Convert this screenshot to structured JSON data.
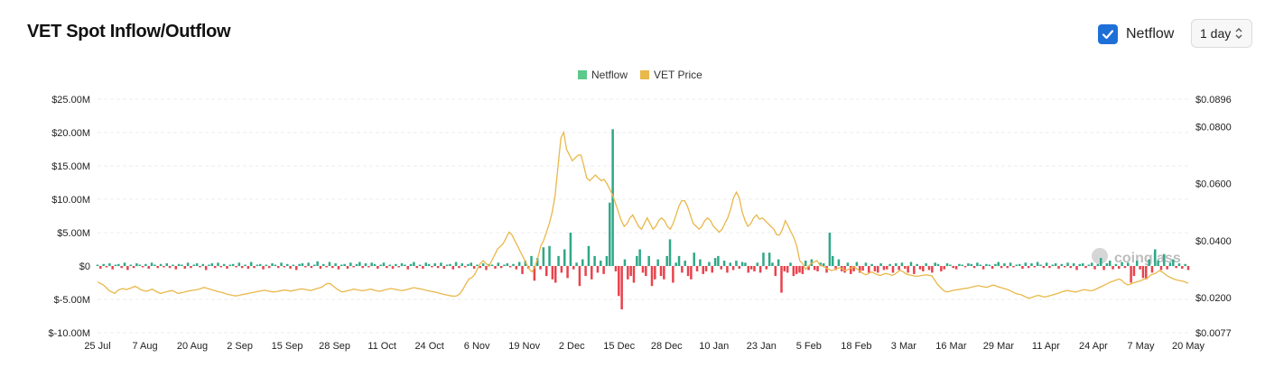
{
  "header": {
    "title": "VET Spot Inflow/Outflow",
    "netflow_toggle_label": "Netflow",
    "netflow_checked": true,
    "interval_value": "1 day"
  },
  "legend": [
    {
      "label": "Netflow",
      "color": "#5cc98a"
    },
    {
      "label": "VET Price",
      "color": "#e8b84a"
    }
  ],
  "watermark": "coinglass",
  "colors": {
    "inflow": "#2fa888",
    "outflow": "#e8434d",
    "price": "#e8b84a",
    "grid": "#ececec"
  },
  "chart_data": {
    "type": "bar+line",
    "x_labels": [
      "25 Jul",
      "7 Aug",
      "20 Aug",
      "2 Sep",
      "15 Sep",
      "28 Sep",
      "11 Oct",
      "24 Oct",
      "6 Nov",
      "19 Nov",
      "2 Dec",
      "15 Dec",
      "28 Dec",
      "10 Jan",
      "23 Jan",
      "5 Feb",
      "18 Feb",
      "3 Mar",
      "16 Mar",
      "29 Mar",
      "11 Apr",
      "24 Apr",
      "7 May",
      "20 May"
    ],
    "y_left": {
      "ticks": [
        "$25.00M",
        "$20.00M",
        "$15.00M",
        "$10.00M",
        "$5.00M",
        "$0",
        "$-5.00M",
        "$-10.00M"
      ],
      "range": [
        -10,
        25
      ],
      "unit": "M USD"
    },
    "y_right": {
      "ticks": [
        "$0.0896",
        "$0.0800",
        "$0.0600",
        "$0.0400",
        "$0.0200",
        "$0.0077"
      ],
      "range": [
        0.0077,
        0.0896
      ]
    },
    "series": [
      {
        "name": "Netflow",
        "axis": "left",
        "values": [
          0.2,
          -0.4,
          0.3,
          -0.2,
          0.4,
          -0.5,
          0.2,
          0.3,
          -0.3,
          0.5,
          -0.6,
          0.2,
          -0.3,
          0.4,
          0.2,
          -0.2,
          0.3,
          -0.4,
          0.5,
          0.2,
          -0.3,
          0.3,
          -0.2,
          0.4,
          -0.3,
          0.2,
          -0.5,
          0.3,
          0.2,
          -0.4,
          0.5,
          -0.3,
          0.2,
          0.4,
          -0.2,
          0.3,
          -0.6,
          0.2,
          0.4,
          -0.3,
          0.5,
          -0.2,
          0.3,
          -0.4,
          0.2,
          0.3,
          -0.2,
          0.5,
          -0.3,
          0.2,
          -0.4,
          0.6,
          -0.3,
          0.2,
          0.3,
          -0.5,
          0.2,
          -0.3,
          0.4,
          0.2,
          -0.3,
          0.5,
          -0.2,
          0.3,
          -0.4,
          0.2,
          -0.6,
          0.3,
          0.4,
          -0.2,
          0.5,
          -0.3,
          0.2,
          0.7,
          -0.4,
          0.3,
          -0.2,
          0.6,
          -0.3,
          0.4,
          -0.5,
          0.2,
          0.3,
          -0.4,
          0.5,
          -0.2,
          0.3,
          0.6,
          -0.3,
          0.4,
          -0.2,
          0.5,
          0.3,
          -0.4,
          0.2,
          0.5,
          -0.3,
          0.2,
          -0.4,
          0.3,
          -0.2,
          0.4,
          0.2,
          -0.5,
          0.3,
          0.6,
          -0.3,
          0.2,
          -0.4,
          0.5,
          0.3,
          -0.2,
          0.4,
          -0.3,
          0.5,
          -0.4,
          0.2,
          0.3,
          -0.5,
          0.6,
          -0.3,
          0.4,
          -0.2,
          0.3,
          0.5,
          -0.4,
          0.2,
          -0.3,
          0.4,
          -0.6,
          0.3,
          0.2,
          -0.4,
          0.5,
          -0.3,
          0.2,
          0.4,
          -0.2,
          0.3,
          -0.5,
          0.6,
          -1.2,
          0.8,
          -0.4,
          1.5,
          -2.2,
          1.2,
          -0.5,
          2.8,
          -1.5,
          3.0,
          -2.0,
          -2.5,
          1.5,
          -1.0,
          2.5,
          -1.8,
          5.0,
          -0.5,
          0.5,
          -3.0,
          1.0,
          -1.5,
          3.0,
          -2.0,
          1.5,
          -1.0,
          0.8,
          -1.2,
          1.5,
          9.5,
          20.5,
          -0.8,
          -4.5,
          -6.5,
          1.0,
          -2.0,
          -1.5,
          -2.5,
          1.5,
          2.5,
          -1.0,
          -1.5,
          1.5,
          -3.0,
          -2.0,
          1.0,
          -1.5,
          -2.0,
          1.5,
          4.0,
          -2.5,
          0.5,
          1.5,
          -1.0,
          0.8,
          -1.5,
          -2.0,
          2.0,
          -0.8,
          1.0,
          -1.2,
          -0.8,
          0.6,
          -1.0,
          1.2,
          1.5,
          -0.5,
          0.8,
          -1.0,
          0.5,
          -0.6,
          0.8,
          -0.4,
          0.6,
          0.5,
          -1.0,
          -0.5,
          -0.8,
          0.5,
          -1.0,
          2.0,
          -0.5,
          2.0,
          0.5,
          -1.5,
          1.0,
          -4.0,
          -0.8,
          -1.0,
          0.5,
          -1.5,
          -1.2,
          -1.0,
          -1.2,
          0.8,
          -0.6,
          1.0,
          -0.6,
          -0.8,
          0.5,
          0.4,
          -1.0,
          5.0,
          1.5,
          -0.6,
          1.0,
          -0.8,
          -1.0,
          0.5,
          -1.2,
          -0.8,
          0.6,
          -1.0,
          -0.7,
          0.5,
          -1.0,
          0.3,
          -0.8,
          -1.0,
          0.4,
          -0.6,
          -0.5,
          0.3,
          -1.0,
          0.4,
          -0.6,
          0.5,
          -0.4,
          -1.0,
          0.6,
          -1.2,
          0.3,
          -0.5,
          -0.8,
          0.4,
          -0.6,
          -1.0,
          0.5,
          0.3,
          -0.8,
          -0.5,
          0.4,
          0.2,
          -0.3,
          -0.5,
          0.3,
          0.2,
          -0.2,
          0.4,
          0.3,
          -0.3,
          0.5,
          0.2,
          -0.5,
          0.3,
          0.2,
          -0.4,
          0.3,
          0.6,
          -0.3,
          0.4,
          -0.3,
          0.5,
          -0.2,
          0.2,
          0.3,
          -0.4,
          0.5,
          -0.3,
          0.4,
          -0.2,
          0.6,
          0.2,
          -0.3,
          0.5,
          -0.3,
          0.2,
          0.4,
          -0.4,
          0.3,
          -0.2,
          0.5,
          -0.3,
          0.4,
          -0.6,
          0.3,
          0.4,
          -0.3,
          0.2,
          0.5,
          -0.5,
          0.3,
          1.2,
          -0.6,
          0.4,
          0.8,
          -0.5,
          0.3,
          -0.4,
          0.6,
          -0.3,
          0.5,
          -2.5,
          -1.5,
          0.8,
          -0.5,
          -1.8,
          -2.0,
          1.0,
          -1.0,
          2.5,
          0.8,
          -0.6,
          1.8,
          -0.5,
          0.5,
          1.0,
          -0.3,
          0.4,
          -0.4,
          0.3,
          -0.6
        ]
      },
      {
        "name": "VET Price",
        "axis": "right",
        "values": [
          0.0255,
          0.025,
          0.0245,
          0.0235,
          0.0225,
          0.022,
          0.0215,
          0.0225,
          0.023,
          0.0232,
          0.0228,
          0.0232,
          0.0235,
          0.024,
          0.0235,
          0.0228,
          0.0225,
          0.0222,
          0.0226,
          0.023,
          0.0224,
          0.0219,
          0.0215,
          0.0218,
          0.0221,
          0.0223,
          0.0225,
          0.022,
          0.0215,
          0.0217,
          0.0219,
          0.0222,
          0.0224,
          0.0226,
          0.0227,
          0.0229,
          0.0232,
          0.0236,
          0.0233,
          0.023,
          0.0227,
          0.0224,
          0.0221,
          0.0219,
          0.0216,
          0.0212,
          0.021,
          0.0208,
          0.0206,
          0.0208,
          0.021,
          0.0212,
          0.0214,
          0.0216,
          0.0218,
          0.022,
          0.0222,
          0.0224,
          0.0226,
          0.0224,
          0.0222,
          0.022,
          0.0221,
          0.0223,
          0.0225,
          0.0227,
          0.0225,
          0.0223,
          0.0225,
          0.0227,
          0.0229,
          0.0231,
          0.0229,
          0.0227,
          0.0225,
          0.0228,
          0.0231,
          0.0234,
          0.0237,
          0.0245,
          0.025,
          0.0248,
          0.024,
          0.0232,
          0.0225,
          0.022,
          0.0222,
          0.0225,
          0.0227,
          0.023,
          0.0228,
          0.0226,
          0.0224,
          0.0226,
          0.0228,
          0.023,
          0.0227,
          0.0224,
          0.0222,
          0.0225,
          0.0228,
          0.023,
          0.0232,
          0.023,
          0.0228,
          0.0226,
          0.0225,
          0.0227,
          0.023,
          0.0233,
          0.0235,
          0.0233,
          0.0231,
          0.0229,
          0.0226,
          0.0224,
          0.0222,
          0.022,
          0.0218,
          0.0215,
          0.0212,
          0.021,
          0.0208,
          0.0206,
          0.0205,
          0.0207,
          0.0215,
          0.023,
          0.0248,
          0.0265,
          0.027,
          0.028,
          0.03,
          0.032,
          0.033,
          0.032,
          0.031,
          0.033,
          0.035,
          0.037,
          0.038,
          0.039,
          0.041,
          0.043,
          0.042,
          0.04,
          0.038,
          0.036,
          0.034,
          0.032,
          0.03,
          0.029,
          0.031,
          0.034,
          0.038,
          0.04,
          0.043,
          0.046,
          0.05,
          0.056,
          0.066,
          0.076,
          0.078,
          0.072,
          0.07,
          0.068,
          0.069,
          0.07,
          0.07,
          0.066,
          0.062,
          0.061,
          0.062,
          0.063,
          0.062,
          0.061,
          0.0615,
          0.06,
          0.058,
          0.056,
          0.053,
          0.05,
          0.047,
          0.045,
          0.046,
          0.048,
          0.049,
          0.047,
          0.045,
          0.044,
          0.046,
          0.048,
          0.046,
          0.044,
          0.045,
          0.047,
          0.048,
          0.047,
          0.045,
          0.044,
          0.046,
          0.049,
          0.052,
          0.054,
          0.054,
          0.052,
          0.049,
          0.046,
          0.045,
          0.044,
          0.045,
          0.047,
          0.048,
          0.047,
          0.045,
          0.044,
          0.043,
          0.044,
          0.046,
          0.048,
          0.051,
          0.055,
          0.057,
          0.055,
          0.05,
          0.047,
          0.045,
          0.046,
          0.048,
          0.049,
          0.0475,
          0.048,
          0.047,
          0.046,
          0.045,
          0.044,
          0.042,
          0.042,
          0.044,
          0.047,
          0.045,
          0.043,
          0.041,
          0.038,
          0.033,
          0.032,
          0.03,
          0.031,
          0.032,
          0.0325,
          0.033,
          0.0315,
          0.031,
          0.0305,
          0.03,
          0.0295,
          0.0298,
          0.0302,
          0.0305,
          0.03,
          0.0295,
          0.03,
          0.0305,
          0.0308,
          0.03,
          0.0292,
          0.0285,
          0.028,
          0.0285,
          0.029,
          0.0285,
          0.028,
          0.0278,
          0.0282,
          0.0285,
          0.0282,
          0.0278,
          0.0282,
          0.029,
          0.0296,
          0.029,
          0.0283,
          0.028,
          0.0278,
          0.0276,
          0.0275,
          0.0277,
          0.0279,
          0.028,
          0.0278,
          0.0276,
          0.026,
          0.0245,
          0.0235,
          0.0225,
          0.022,
          0.0222,
          0.0225,
          0.0227,
          0.0228,
          0.023,
          0.0232,
          0.0233,
          0.0235,
          0.0238,
          0.024,
          0.0242,
          0.024,
          0.0238,
          0.0236,
          0.024,
          0.0244,
          0.0242,
          0.0238,
          0.0235,
          0.0232,
          0.0229,
          0.0225,
          0.022,
          0.0215,
          0.0212,
          0.021,
          0.0205,
          0.02,
          0.0198,
          0.0202,
          0.0206,
          0.0208,
          0.0205,
          0.0202,
          0.0204,
          0.0207,
          0.021,
          0.0213,
          0.0216,
          0.022,
          0.0223,
          0.0225,
          0.0223,
          0.0221,
          0.022,
          0.0223,
          0.0226,
          0.0228,
          0.0226,
          0.0224,
          0.0226,
          0.023,
          0.0235,
          0.024,
          0.0245,
          0.025,
          0.0255,
          0.0258,
          0.0262,
          0.0265,
          0.026,
          0.025,
          0.0245,
          0.0248,
          0.0252,
          0.0255,
          0.0258,
          0.0262,
          0.0266,
          0.027,
          0.028,
          0.0283,
          0.0288,
          0.0295,
          0.029,
          0.0282,
          0.0275,
          0.027,
          0.0265,
          0.0262,
          0.026,
          0.0258,
          0.0255,
          0.025
        ]
      }
    ],
    "legend_position": "top-center",
    "grid": true
  }
}
